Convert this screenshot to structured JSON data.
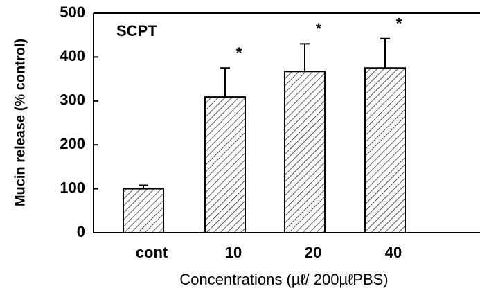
{
  "chart_data": {
    "type": "bar",
    "xlabel": "Concentrations (µℓ/ 200µℓPBS)",
    "ylabel": "Mucin release (% control)",
    "annotation": "SCPT",
    "categories": [
      "cont",
      "10",
      "20",
      "40"
    ],
    "values": [
      100,
      309,
      367,
      375
    ],
    "errors": [
      8,
      66,
      63,
      67
    ],
    "significance": [
      null,
      "*",
      "*",
      "*"
    ],
    "ylim": [
      0,
      500
    ],
    "yticks": [
      0,
      100,
      200,
      300,
      400,
      500
    ],
    "color": "#000000",
    "hatch": true
  }
}
